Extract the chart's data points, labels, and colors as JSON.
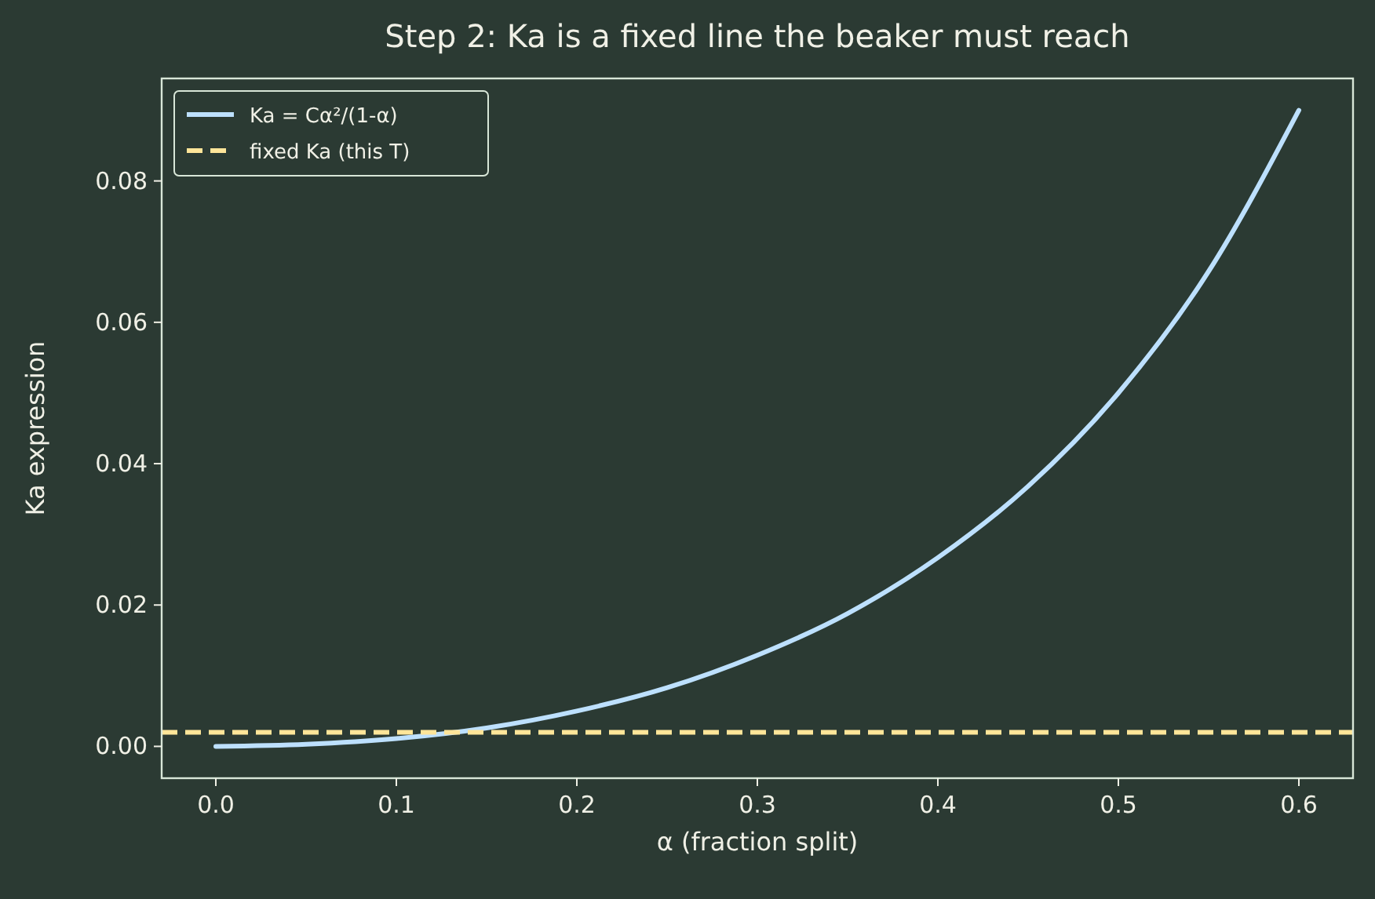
{
  "chart_data": {
    "type": "line",
    "title": "Step 2: Ka is a fixed line the beaker must reach",
    "xlabel": "α (fraction split)",
    "ylabel": "Ka expression",
    "x": [
      0,
      0.05,
      0.1,
      0.15,
      0.2,
      0.25,
      0.3,
      0.35,
      0.4,
      0.45,
      0.5,
      0.55,
      0.6
    ],
    "series": [
      {
        "name": "Ka = Cα²/(1-α)",
        "color": "#bde0fe",
        "line_style": "solid",
        "values": [
          0,
          0.0003,
          0.0011,
          0.0026,
          0.005,
          0.0083,
          0.0129,
          0.0188,
          0.0267,
          0.0368,
          0.05,
          0.0672,
          0.09
        ]
      }
    ],
    "ref_lines": [
      {
        "axis": "y",
        "value": 0.002,
        "label": "fixed Ka (this T)",
        "color": "#ffe599",
        "line_style": "dashed"
      }
    ],
    "xlim": [
      -0.03,
      0.63
    ],
    "ylim": [
      -0.0045,
      0.0945
    ],
    "xticks": [
      {
        "value": 0,
        "label": "0.0"
      },
      {
        "value": 0.1,
        "label": "0.1"
      },
      {
        "value": 0.2,
        "label": "0.2"
      },
      {
        "value": 0.3,
        "label": "0.3"
      },
      {
        "value": 0.4,
        "label": "0.4"
      },
      {
        "value": 0.5,
        "label": "0.5"
      },
      {
        "value": 0.6,
        "label": "0.6"
      }
    ],
    "yticks": [
      {
        "value": 0,
        "label": "0.00"
      },
      {
        "value": 0.02,
        "label": "0.02"
      },
      {
        "value": 0.04,
        "label": "0.04"
      },
      {
        "value": 0.06,
        "label": "0.06"
      },
      {
        "value": 0.08,
        "label": "0.08"
      }
    ],
    "grid": false,
    "legend": "top left"
  }
}
